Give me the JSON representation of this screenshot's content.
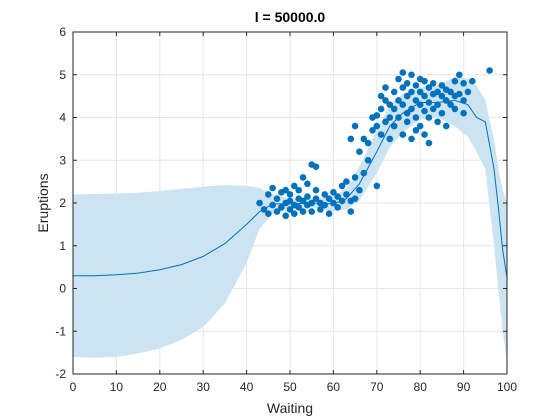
{
  "chart_data": {
    "type": "scatter",
    "title": "l = 50000.0",
    "xlabel": "Waiting",
    "ylabel": "Eruptions",
    "xlim": [
      0,
      100
    ],
    "ylim": [
      -2,
      6
    ],
    "xticks": [
      0,
      10,
      20,
      30,
      40,
      50,
      60,
      70,
      80,
      90,
      100
    ],
    "yticks": [
      -2,
      -1,
      0,
      1,
      2,
      3,
      4,
      5,
      6
    ],
    "grid": true,
    "colors": {
      "points": "#0072BD",
      "band": "#CCE3F2",
      "line": "#0072BD",
      "grid": "#E6E6E6",
      "axis": "#262626"
    },
    "fit_line": {
      "x": [
        0,
        5,
        10,
        15,
        20,
        25,
        30,
        35,
        40,
        43,
        46,
        50,
        55,
        60,
        63,
        66,
        70,
        73,
        76,
        80,
        84,
        88,
        91,
        93,
        95,
        97,
        98,
        99,
        100
      ],
      "y": [
        0.3,
        0.3,
        0.32,
        0.36,
        0.44,
        0.56,
        0.75,
        1.05,
        1.5,
        1.8,
        1.98,
        1.98,
        2.0,
        1.98,
        2.1,
        2.45,
        3.2,
        3.8,
        4.1,
        4.35,
        4.35,
        4.4,
        4.3,
        4.0,
        3.9,
        2.8,
        1.9,
        0.9,
        0.25
      ]
    },
    "band": {
      "x": [
        0,
        5,
        10,
        15,
        20,
        25,
        30,
        35,
        40,
        43,
        46,
        50,
        55,
        60,
        63,
        66,
        70,
        73,
        76,
        80,
        84,
        88,
        91,
        93,
        95,
        97,
        98,
        99,
        100
      ],
      "upper": [
        2.2,
        2.21,
        2.22,
        2.24,
        2.28,
        2.33,
        2.38,
        2.42,
        2.4,
        2.35,
        2.2,
        2.1,
        2.1,
        2.15,
        2.35,
        2.85,
        3.7,
        4.3,
        4.55,
        4.7,
        4.75,
        4.95,
        4.9,
        4.75,
        4.4,
        3.5,
        2.8,
        2.3,
        2.0
      ],
      "lower": [
        -1.6,
        -1.62,
        -1.6,
        -1.52,
        -1.4,
        -1.2,
        -0.9,
        -0.35,
        0.6,
        1.4,
        1.75,
        1.85,
        1.9,
        1.8,
        1.85,
        2.05,
        2.7,
        3.3,
        3.65,
        3.95,
        4.0,
        3.8,
        3.55,
        3.2,
        2.8,
        1.0,
        0.0,
        -1.0,
        -1.7
      ]
    },
    "points": [
      [
        43,
        2.0
      ],
      [
        44,
        1.85
      ],
      [
        45,
        2.2
      ],
      [
        45,
        1.75
      ],
      [
        46,
        2.35
      ],
      [
        46,
        1.95
      ],
      [
        47,
        2.1
      ],
      [
        47,
        1.8
      ],
      [
        48,
        2.25
      ],
      [
        48,
        1.9
      ],
      [
        49,
        2.0
      ],
      [
        49,
        1.7
      ],
      [
        49,
        2.3
      ],
      [
        50,
        2.05
      ],
      [
        50,
        1.85
      ],
      [
        50,
        2.2
      ],
      [
        51,
        2.4
      ],
      [
        51,
        1.95
      ],
      [
        51,
        1.75
      ],
      [
        52,
        2.1
      ],
      [
        52,
        2.3
      ],
      [
        52,
        1.9
      ],
      [
        53,
        2.6
      ],
      [
        53,
        1.8
      ],
      [
        53,
        2.05
      ],
      [
        54,
        2.15
      ],
      [
        54,
        1.95
      ],
      [
        54,
        2.45
      ],
      [
        55,
        2.9
      ],
      [
        55,
        2.0
      ],
      [
        55,
        1.8
      ],
      [
        56,
        2.85
      ],
      [
        56,
        2.1
      ],
      [
        56,
        2.3
      ],
      [
        57,
        2.0
      ],
      [
        57,
        1.85
      ],
      [
        58,
        2.2
      ],
      [
        58,
        1.95
      ],
      [
        59,
        2.1
      ],
      [
        59,
        1.75
      ],
      [
        60,
        2.0
      ],
      [
        60,
        2.25
      ],
      [
        61,
        1.9
      ],
      [
        61,
        2.15
      ],
      [
        62,
        2.4
      ],
      [
        62,
        2.05
      ],
      [
        63,
        2.2
      ],
      [
        63,
        2.5
      ],
      [
        64,
        2.05
      ],
      [
        64,
        1.8
      ],
      [
        64,
        3.5
      ],
      [
        65,
        2.6
      ],
      [
        65,
        2.1
      ],
      [
        65,
        3.8
      ],
      [
        66,
        2.3
      ],
      [
        66,
        3.2
      ],
      [
        67,
        2.7
      ],
      [
        67,
        3.5
      ],
      [
        68,
        3.4
      ],
      [
        68,
        3.0
      ],
      [
        69,
        3.7
      ],
      [
        69,
        4.0
      ],
      [
        70,
        4.05
      ],
      [
        70,
        3.8
      ],
      [
        70,
        2.4
      ],
      [
        71,
        4.2
      ],
      [
        71,
        3.6
      ],
      [
        71,
        4.5
      ],
      [
        72,
        4.4
      ],
      [
        72,
        3.9
      ],
      [
        72,
        4.7
      ],
      [
        73,
        4.3
      ],
      [
        73,
        4.0
      ],
      [
        73,
        3.5
      ],
      [
        74,
        4.6
      ],
      [
        74,
        4.2
      ],
      [
        74,
        3.8
      ],
      [
        75,
        4.9
      ],
      [
        75,
        4.4
      ],
      [
        75,
        4.0
      ],
      [
        76,
        4.7
      ],
      [
        76,
        4.3
      ],
      [
        76,
        5.05
      ],
      [
        76,
        3.6
      ],
      [
        77,
        4.5
      ],
      [
        77,
        4.1
      ],
      [
        77,
        4.8
      ],
      [
        77,
        3.9
      ],
      [
        78,
        4.6
      ],
      [
        78,
        4.2
      ],
      [
        78,
        5.0
      ],
      [
        78,
        3.5
      ],
      [
        79,
        4.4
      ],
      [
        79,
        4.0
      ],
      [
        79,
        4.75
      ],
      [
        79,
        3.7
      ],
      [
        80,
        4.6
      ],
      [
        80,
        4.3
      ],
      [
        80,
        4.9
      ],
      [
        80,
        3.8
      ],
      [
        81,
        4.5
      ],
      [
        81,
        4.15
      ],
      [
        81,
        4.85
      ],
      [
        81,
        3.6
      ],
      [
        82,
        4.7
      ],
      [
        82,
        4.35
      ],
      [
        82,
        4.0
      ],
      [
        82,
        3.4
      ],
      [
        83,
        4.55
      ],
      [
        83,
        4.2
      ],
      [
        83,
        4.8
      ],
      [
        84,
        4.6
      ],
      [
        84,
        4.3
      ],
      [
        84,
        3.9
      ],
      [
        85,
        4.5
      ],
      [
        85,
        4.1
      ],
      [
        85,
        4.75
      ],
      [
        86,
        4.4
      ],
      [
        86,
        4.65
      ],
      [
        86,
        3.8
      ],
      [
        87,
        4.3
      ],
      [
        87,
        4.6
      ],
      [
        88,
        4.85
      ],
      [
        88,
        4.5
      ],
      [
        88,
        4.2
      ],
      [
        89,
        5.0
      ],
      [
        89,
        4.55
      ],
      [
        90,
        4.4
      ],
      [
        90,
        4.8
      ],
      [
        90,
        4.1
      ],
      [
        91,
        4.6
      ],
      [
        92,
        4.85
      ],
      [
        96,
        5.1
      ]
    ]
  }
}
